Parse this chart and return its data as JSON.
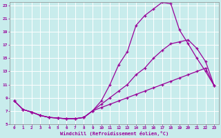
{
  "xlabel": "Windchill (Refroidissement éolien,°C)",
  "ylabel": "",
  "bg_color": "#c8ecec",
  "grid_color": "#ffffff",
  "line_color": "#990099",
  "xlim": [
    -0.5,
    23.5
  ],
  "ylim": [
    5,
    23.5
  ],
  "xticks": [
    0,
    1,
    2,
    3,
    4,
    5,
    6,
    7,
    8,
    9,
    10,
    11,
    12,
    13,
    14,
    15,
    16,
    17,
    18,
    19,
    20,
    21,
    22,
    23
  ],
  "yticks": [
    5,
    7,
    9,
    11,
    13,
    15,
    17,
    19,
    21,
    23
  ],
  "line1_x": [
    0,
    1,
    2,
    3,
    4,
    5,
    6,
    7,
    8,
    9,
    10,
    11,
    12,
    13,
    14,
    15,
    16,
    17,
    18,
    19,
    20,
    21,
    22,
    23
  ],
  "line1_y": [
    8.5,
    7.2,
    6.8,
    6.3,
    6.0,
    5.9,
    5.8,
    5.8,
    6.0,
    7.0,
    8.5,
    11.0,
    14.0,
    16.0,
    20.0,
    21.5,
    22.5,
    23.5,
    23.3,
    19.3,
    17.2,
    15.0,
    13.0,
    10.8
  ],
  "line2_x": [
    0,
    1,
    2,
    3,
    4,
    5,
    6,
    7,
    8,
    9,
    10,
    11,
    12,
    13,
    14,
    15,
    16,
    17,
    18,
    19,
    20,
    21,
    22,
    23
  ],
  "line2_y": [
    8.5,
    7.2,
    6.8,
    6.3,
    6.0,
    5.9,
    5.8,
    5.8,
    6.0,
    7.0,
    8.0,
    9.0,
    10.0,
    11.0,
    12.5,
    13.5,
    15.0,
    16.2,
    17.2,
    17.5,
    17.8,
    16.5,
    14.5,
    10.8
  ],
  "line3_x": [
    0,
    1,
    2,
    3,
    4,
    5,
    6,
    7,
    8,
    9,
    10,
    11,
    12,
    13,
    14,
    15,
    16,
    17,
    18,
    19,
    20,
    21,
    22,
    23
  ],
  "line3_y": [
    8.5,
    7.2,
    6.8,
    6.3,
    6.0,
    5.9,
    5.8,
    5.8,
    6.0,
    7.0,
    7.5,
    8.0,
    8.5,
    9.0,
    9.5,
    10.0,
    10.5,
    11.0,
    11.5,
    12.0,
    12.5,
    13.0,
    13.5,
    10.8
  ],
  "marker": "+",
  "markersize": 3.5,
  "markeredgewidth": 0.9,
  "linewidth": 0.9
}
